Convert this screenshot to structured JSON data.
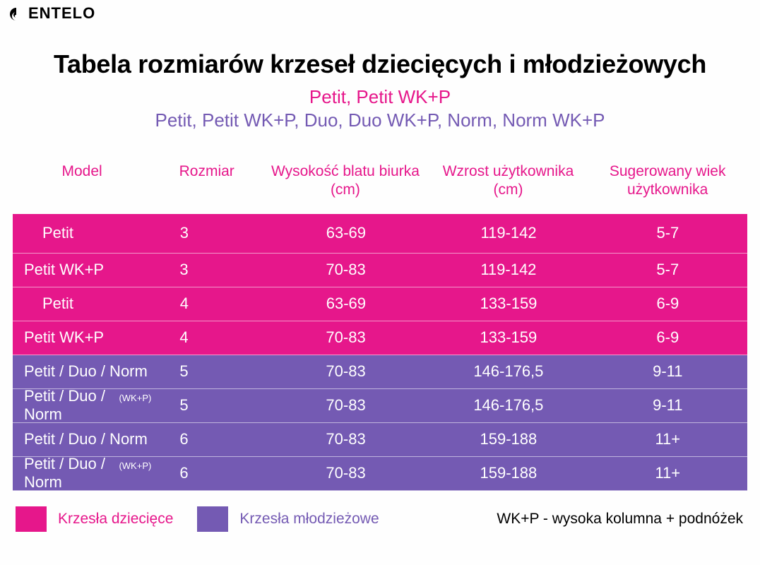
{
  "colors": {
    "pink": "#e6178b",
    "purple": "#745ab3",
    "headerText": "#e6178b",
    "sub1": "#e6178b",
    "sub2": "#745ab3"
  },
  "brand": "ENTELO",
  "title": "Tabela rozmiarów krzeseł dziecięcych i młodzieżowych",
  "subtitle1": "Petit, Petit WK+P",
  "subtitle2": "Petit, Petit WK+P, Duo, Duo WK+P, Norm, Norm WK+P",
  "headers": {
    "model": "Model",
    "size": "Rozmiar",
    "desk": "Wysokość blatu biurka (cm)",
    "height": "Wzrost użytkownika (cm)",
    "age": "Sugerowany wiek użytkownika"
  },
  "rows": [
    {
      "model": "Petit",
      "suffix": "",
      "size": "3",
      "desk": "63-69",
      "height": "119-142",
      "age": "5-7",
      "group": "pink",
      "indent": true
    },
    {
      "model": "Petit WK+P",
      "suffix": "",
      "size": "3",
      "desk": "70-83",
      "height": "119-142",
      "age": "5-7",
      "group": "pink",
      "indent": false
    },
    {
      "model": "Petit",
      "suffix": "",
      "size": "4",
      "desk": "63-69",
      "height": "133-159",
      "age": "6-9",
      "group": "pink",
      "indent": true
    },
    {
      "model": "Petit WK+P",
      "suffix": "",
      "size": "4",
      "desk": "70-83",
      "height": "133-159",
      "age": "6-9",
      "group": "pink",
      "indent": false
    },
    {
      "model": "Petit / Duo / Norm",
      "suffix": "",
      "size": "5",
      "desk": "70-83",
      "height": "146-176,5",
      "age": "9-11",
      "group": "purple",
      "indent": false
    },
    {
      "model": "Petit / Duo / Norm",
      "suffix": "(WK+P)",
      "size": "5",
      "desk": "70-83",
      "height": "146-176,5",
      "age": "9-11",
      "group": "purple",
      "indent": false
    },
    {
      "model": "Petit / Duo / Norm",
      "suffix": "",
      "size": "6",
      "desk": "70-83",
      "height": "159-188",
      "age": "11+",
      "group": "purple",
      "indent": false
    },
    {
      "model": "Petit / Duo / Norm",
      "suffix": "(WK+P)",
      "size": "6",
      "desk": "70-83",
      "height": "159-188",
      "age": "11+",
      "group": "purple",
      "indent": false
    }
  ],
  "legend": {
    "children": "Krzesła dziecięce",
    "youth": "Krzesła młodzieżowe",
    "note": "WK+P - wysoka kolumna + podnóżek"
  }
}
